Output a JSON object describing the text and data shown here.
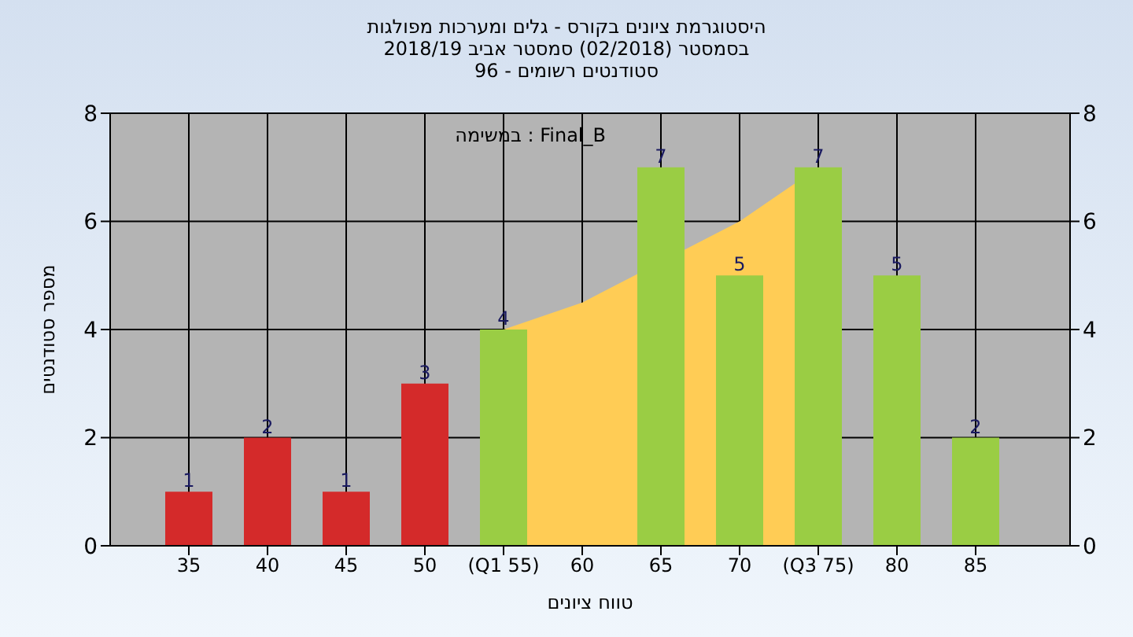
{
  "chart_data": {
    "type": "bar",
    "title": "היסטוגרמת ציונים בקורס - גלים ומערכות מפולגות\nבסמסטר (02/2018) סמסטר אביב 2018/19\nסטודנטים רשומים - 96",
    "xlabel": "טווח ציונים",
    "ylabel": "מספר סטודנטים",
    "categories": [
      "35",
      "40",
      "45",
      "50",
      "(Q1 55)",
      "60",
      "65",
      "70",
      "(Q3 75)",
      "80",
      "85"
    ],
    "series": [
      {
        "type": "area",
        "color": "#ffcc55",
        "values": [
          null,
          null,
          null,
          null,
          4,
          4.5,
          null,
          6,
          7,
          null,
          null
        ]
      },
      {
        "colors": [
          "#d42a2a",
          "#d42a2a",
          "#d42a2a",
          "#d42a2a",
          "#9acd44",
          "#9acd44",
          "#9acd44",
          "#9acd44",
          "#9acd44",
          "#9acd44",
          "#9acd44"
        ],
        "values": [
          1,
          2,
          1,
          3,
          4,
          0,
          7,
          5,
          7,
          5,
          2
        ],
        "value_labels": [
          "1",
          "2",
          "1",
          "3",
          "4",
          null,
          "7",
          "5",
          "7",
          "5",
          "2"
        ]
      }
    ],
    "ylim": [
      0,
      8
    ],
    "yticks": [
      0,
      2,
      4,
      6,
      8
    ],
    "y2lim": [
      0,
      8
    ],
    "y2ticks": [
      0,
      2,
      4,
      6,
      8
    ],
    "grid": true,
    "legend": false,
    "annotations": [
      "Final_B : במשימה"
    ]
  }
}
